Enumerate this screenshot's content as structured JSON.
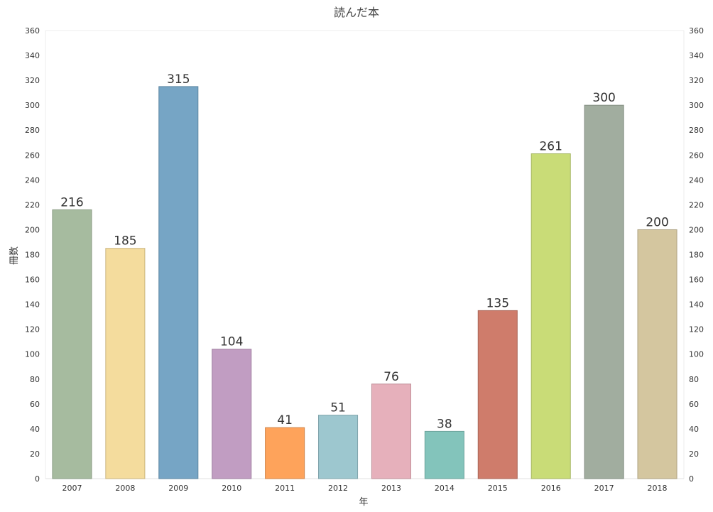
{
  "chart_data": {
    "type": "bar",
    "title": "読んだ本",
    "xlabel": "年",
    "ylabel": "冊数",
    "categories": [
      "2007",
      "2008",
      "2009",
      "2010",
      "2011",
      "2012",
      "2013",
      "2014",
      "2015",
      "2016",
      "2017",
      "2018"
    ],
    "values": [
      216,
      185,
      315,
      104,
      41,
      51,
      76,
      38,
      135,
      261,
      300,
      200
    ],
    "ylim": [
      0,
      360
    ],
    "yticks": [
      0,
      20,
      40,
      60,
      80,
      100,
      120,
      140,
      160,
      180,
      200,
      220,
      240,
      260,
      280,
      300,
      320,
      340,
      360
    ],
    "secondary_y_axis": true,
    "grid": false,
    "data_labels": true,
    "colors": [
      "#a6bb9f",
      "#f4dc9d",
      "#76a5c5",
      "#c19dc2",
      "#fea35b",
      "#9dc7cf",
      "#e6b0bb",
      "#83c4bb",
      "#cf7c6b",
      "#c9dc77",
      "#a1ad9f",
      "#d4c69f"
    ],
    "stroke_colors": [
      "#8a9c84",
      "#c9b47e",
      "#5d86a2",
      "#9f7fa0",
      "#d1864a",
      "#80a4ab",
      "#bf919a",
      "#6ba29a",
      "#aa6658",
      "#a5b562",
      "#838e82",
      "#aea382"
    ]
  }
}
